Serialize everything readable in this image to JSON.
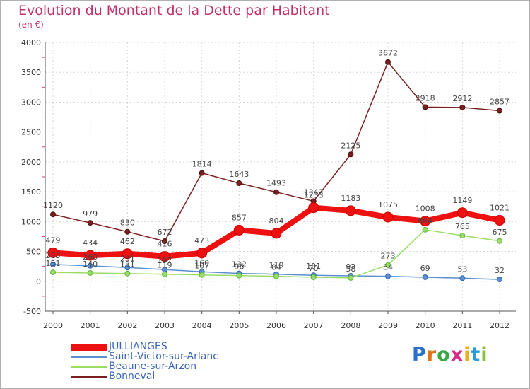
{
  "title": "Evolution du Montant de la Dette par Habitant",
  "subtitle": "(en €)",
  "logo": "Proxiti",
  "logo_colors": [
    "#2a70c8",
    "#e0721a",
    "#3aa84a",
    "#d62a8a",
    "#e9b21c",
    "#2a9ad8",
    "#8bc03a"
  ],
  "chart_data": {
    "type": "line",
    "title": "Evolution du Montant de la Dette par Habitant",
    "ylabel": "(en €)",
    "xlabel": "",
    "ylim": [
      -500,
      4000
    ],
    "yticks": [
      -500,
      0,
      500,
      1000,
      1500,
      2000,
      2500,
      3000,
      3500,
      4000
    ],
    "categories": [
      "2000",
      "2001",
      "2002",
      "2003",
      "2004",
      "2005",
      "2006",
      "2007",
      "2008",
      "2009",
      "2010",
      "2011",
      "2012"
    ],
    "legend_position": "bottom-left",
    "series": [
      {
        "name": "JULLIANGES",
        "color": "#ee1111",
        "values": [
          479,
          434,
          462,
          416,
          473,
          857,
          804,
          1233,
          1183,
          1075,
          1008,
          1149,
          1021
        ]
      },
      {
        "name": "Saint-Victor-sur-Arlanc",
        "color": "#5b8fd0",
        "values": [
          283,
          260,
          231,
          197,
          160,
          132,
          119,
          101,
          92,
          84,
          69,
          53,
          32
        ]
      },
      {
        "name": "Beaune-sur-Arzon",
        "color": "#99dd66",
        "values": [
          151,
          140,
          131,
          119,
          107,
          96,
          84,
          70,
          58,
          273,
          864,
          765,
          675
        ]
      },
      {
        "name": "Bonneval",
        "color": "#7a1f1f",
        "values": [
          1120,
          979,
          830,
          672,
          1814,
          1643,
          1493,
          1342,
          2125,
          3672,
          2918,
          2912,
          2857
        ]
      }
    ]
  }
}
